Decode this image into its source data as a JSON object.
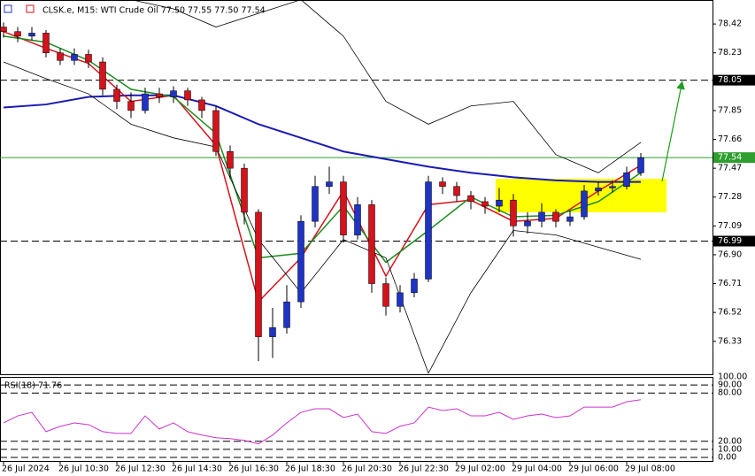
{
  "chart_data": {
    "type": "candlestick",
    "title": "CLSK.e, M15:  WTI Crude Oil  77.50 77.55 77.50 77.54",
    "categories": [
      "26 Jul 2024",
      null,
      null,
      null,
      "26 Jul 10:30",
      null,
      null,
      null,
      "26 Jul 12:30",
      null,
      null,
      null,
      "26 Jul 14:30",
      null,
      null,
      null,
      "26 Jul 16:30",
      null,
      null,
      null,
      "26 Jul 18:30",
      null,
      null,
      null,
      "26 Jul 20:30",
      null,
      null,
      null,
      "26 Jul 22:30",
      null,
      null,
      null,
      "29 Jul 02:00",
      null,
      null,
      null,
      "29 Jul 04:00",
      null,
      null,
      null,
      "29 Jul 06:00",
      null,
      null,
      null,
      "29 Jul 08:00",
      null
    ],
    "open": [
      78.4,
      78.37,
      78.34,
      78.36,
      78.23,
      78.18,
      78.22,
      78.17,
      77.99,
      77.91,
      77.85,
      77.96,
      77.94,
      77.98,
      77.92,
      77.85,
      77.58,
      77.47,
      77.18,
      76.36,
      76.42,
      76.59,
      77.12,
      77.35,
      77.38,
      77.03,
      77.23,
      76.71,
      76.56,
      76.65,
      76.74,
      77.38,
      77.35,
      77.29,
      77.25,
      77.22,
      77.26,
      77.09,
      77.12,
      77.18,
      77.12,
      77.15,
      77.32,
      77.34,
      77.35,
      77.44
    ],
    "high": [
      78.43,
      78.4,
      78.4,
      78.38,
      78.26,
      78.26,
      78.25,
      78.2,
      78.02,
      77.97,
      78.0,
      78.0,
      78.01,
      78.0,
      77.94,
      77.88,
      77.62,
      77.5,
      77.2,
      76.55,
      76.7,
      77.16,
      77.42,
      77.48,
      77.42,
      77.28,
      77.26,
      76.75,
      76.7,
      76.78,
      77.42,
      77.41,
      77.38,
      77.32,
      77.28,
      77.34,
      77.3,
      77.18,
      77.24,
      77.2,
      77.19,
      77.36,
      77.38,
      77.39,
      77.48,
      77.57
    ],
    "low": [
      78.33,
      78.3,
      78.31,
      78.2,
      78.15,
      78.15,
      78.13,
      77.95,
      77.86,
      77.8,
      77.83,
      77.9,
      77.9,
      77.88,
      77.8,
      77.55,
      77.4,
      77.1,
      76.2,
      76.22,
      76.38,
      76.55,
      77.08,
      77.3,
      76.98,
      77.0,
      76.65,
      76.5,
      76.52,
      76.62,
      76.72,
      77.3,
      77.25,
      77.2,
      77.17,
      77.18,
      77.02,
      77.04,
      77.08,
      77.08,
      77.09,
      77.13,
      77.29,
      77.31,
      77.33,
      77.42
    ],
    "close": [
      78.37,
      78.34,
      78.36,
      78.23,
      78.18,
      78.22,
      78.17,
      77.99,
      77.91,
      77.85,
      77.96,
      77.94,
      77.98,
      77.92,
      77.85,
      77.58,
      77.47,
      77.18,
      76.36,
      76.42,
      76.59,
      77.12,
      77.35,
      77.38,
      77.03,
      77.23,
      76.71,
      76.56,
      76.65,
      76.74,
      77.38,
      77.35,
      77.29,
      77.25,
      77.22,
      77.26,
      77.09,
      77.12,
      77.18,
      77.12,
      77.15,
      77.32,
      77.34,
      77.35,
      77.44,
      77.54
    ],
    "up_color": "#1f33c4",
    "down_color": "#d4131c",
    "ylim": [
      76.113,
      78.578
    ],
    "yticks": [
      78.42,
      78.23,
      77.85,
      77.66,
      77.47,
      77.28,
      77.09,
      {
        "value": 76.9,
        "label": "76.90"
      },
      76.71,
      76.52,
      76.33
    ],
    "levels": [
      {
        "value": 78.05,
        "color": "#000000",
        "dashed": true
      },
      {
        "value": 77.54,
        "color": "#2e9e2e",
        "dashed": false
      },
      {
        "value": 76.99,
        "color": "#000000",
        "dashed": true
      }
    ],
    "zone": {
      "from": 35,
      "low": 77.18,
      "high": 77.4,
      "color": "#ffff00"
    },
    "lines": [
      {
        "color": "#1a1ab4",
        "width": 2,
        "x": [
          0,
          3,
          6,
          9,
          12,
          15,
          18,
          21,
          24,
          27,
          30,
          33,
          36,
          39,
          42,
          45
        ],
        "values": [
          77.87,
          77.89,
          77.94,
          77.95,
          77.95,
          77.88,
          77.76,
          77.67,
          77.58,
          77.53,
          77.48,
          77.44,
          77.41,
          77.39,
          77.38,
          77.38
        ]
      },
      {
        "color": "#d4131c",
        "width": 1.5,
        "x": [
          0,
          3,
          6,
          9,
          12,
          15,
          18,
          21,
          24,
          27,
          30,
          33,
          36,
          39,
          42,
          45
        ],
        "values": [
          78.37,
          78.26,
          78.16,
          77.91,
          77.95,
          77.62,
          76.59,
          76.88,
          77.32,
          76.76,
          77.23,
          77.26,
          77.12,
          77.14,
          77.32,
          77.49
        ]
      },
      {
        "color": "#1e8c1e",
        "width": 1.5,
        "x": [
          0,
          3,
          6,
          9,
          12,
          15,
          18,
          21,
          24,
          27,
          30,
          33,
          36,
          39,
          42,
          45
        ],
        "values": [
          78.34,
          78.3,
          78.18,
          77.99,
          77.94,
          77.7,
          76.88,
          76.91,
          77.22,
          76.85,
          77.06,
          77.28,
          77.15,
          77.16,
          77.25,
          77.44
        ]
      },
      {
        "color": "#000000",
        "width": 0.8,
        "x": [
          0,
          3,
          6,
          9,
          12,
          15,
          18,
          21,
          24,
          27,
          30,
          33,
          36,
          39,
          42,
          45
        ],
        "values": [
          78.58,
          78.58,
          78.58,
          78.58,
          78.52,
          78.4,
          78.49,
          78.58,
          78.34,
          77.91,
          77.76,
          77.88,
          77.91,
          77.56,
          77.44,
          77.64
        ]
      },
      {
        "color": "#000000",
        "width": 0.8,
        "x": [
          0,
          3,
          6,
          9,
          12,
          15,
          18,
          21,
          24,
          27,
          30,
          33,
          36,
          39,
          42,
          45
        ],
        "values": [
          78.17,
          78.06,
          77.96,
          77.76,
          77.67,
          77.61,
          77.0,
          76.65,
          77.0,
          76.88,
          76.12,
          76.65,
          77.06,
          77.03,
          76.95,
          76.87
        ]
      }
    ],
    "rsi": {
      "label": "RSI(18) 71.76",
      "color": "#cc33cc",
      "ylim": [
        0,
        100
      ],
      "yticks": [
        {
          "value": 100,
          "label": "100.00"
        },
        {
          "value": 90,
          "label": "90.00"
        },
        {
          "value": 80,
          "label": "80.00"
        },
        {
          "value": 20,
          "label": "20.00"
        },
        {
          "value": 10,
          "label": "10.00"
        },
        {
          "value": 0,
          "label": "0.00"
        }
      ],
      "values": [
        42.9,
        51.6,
        56.0,
        32.0,
        38.6,
        42.9,
        40.7,
        32.0,
        29.8,
        29.8,
        51.6,
        35.3,
        42.9,
        32.0,
        27.7,
        24.4,
        23.3,
        21.1,
        16.8,
        27.7,
        42.9,
        56.0,
        60.4,
        60.4,
        49.5,
        53.8,
        32.0,
        29.8,
        38.6,
        42.9,
        62.5,
        58.2,
        60.4,
        51.6,
        51.6,
        56.0,
        47.3,
        51.6,
        53.8,
        49.5,
        51.6,
        62.5,
        62.5,
        62.5,
        69.1,
        71.76
      ]
    }
  }
}
